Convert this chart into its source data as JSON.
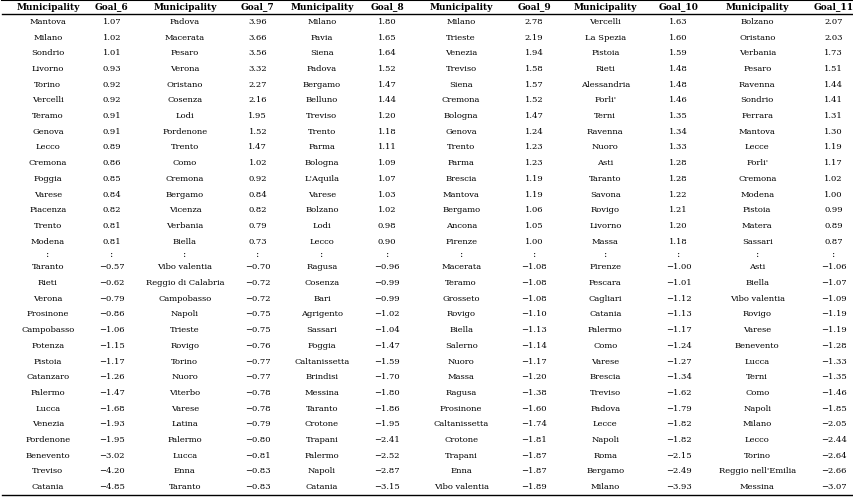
{
  "columns": [
    "Municipality",
    "Goal_6",
    "Municipality",
    "Goal_7",
    "Municipality",
    "Goal_8",
    "Municipality",
    "Goal_9",
    "Municipality",
    "Goal_10",
    "Municipality",
    "Goal_11"
  ],
  "top15": [
    [
      "Mantova",
      "1.07",
      "Padova",
      "3.96",
      "Milano",
      "1.80",
      "Milano",
      "2.78",
      "Vercelli",
      "1.63",
      "Bolzano",
      "2.07"
    ],
    [
      "Milano",
      "1.02",
      "Macerata",
      "3.66",
      "Pavia",
      "1.65",
      "Trieste",
      "2.19",
      "La Spezia",
      "1.60",
      "Oristano",
      "2.03"
    ],
    [
      "Sondrio",
      "1.01",
      "Pesaro",
      "3.56",
      "Siena",
      "1.64",
      "Venezia",
      "1.94",
      "Pistoia",
      "1.59",
      "Verbania",
      "1.73"
    ],
    [
      "Livorno",
      "0.93",
      "Verona",
      "3.32",
      "Padova",
      "1.52",
      "Treviso",
      "1.58",
      "Rieti",
      "1.48",
      "Pesaro",
      "1.51"
    ],
    [
      "Torino",
      "0.92",
      "Oristano",
      "2.27",
      "Bergamo",
      "1.47",
      "Siena",
      "1.57",
      "Alessandria",
      "1.48",
      "Ravenna",
      "1.44"
    ],
    [
      "Vercelli",
      "0.92",
      "Cosenza",
      "2.16",
      "Belluno",
      "1.44",
      "Cremona",
      "1.52",
      "Forli'",
      "1.46",
      "Sondrio",
      "1.41"
    ],
    [
      "Teramo",
      "0.91",
      "Lodi",
      "1.95",
      "Treviso",
      "1.20",
      "Bologna",
      "1.47",
      "Terni",
      "1.35",
      "Ferrara",
      "1.31"
    ],
    [
      "Genova",
      "0.91",
      "Pordenone",
      "1.52",
      "Trento",
      "1.18",
      "Genova",
      "1.24",
      "Ravenna",
      "1.34",
      "Mantova",
      "1.30"
    ],
    [
      "Lecco",
      "0.89",
      "Trento",
      "1.47",
      "Parma",
      "1.11",
      "Trento",
      "1.23",
      "Nuoro",
      "1.33",
      "Lecce",
      "1.19"
    ],
    [
      "Cremona",
      "0.86",
      "Como",
      "1.02",
      "Bologna",
      "1.09",
      "Parma",
      "1.23",
      "Asti",
      "1.28",
      "Forli'",
      "1.17"
    ],
    [
      "Foggia",
      "0.85",
      "Cremona",
      "0.92",
      "L'Aquila",
      "1.07",
      "Brescia",
      "1.19",
      "Taranto",
      "1.28",
      "Cremona",
      "1.02"
    ],
    [
      "Varese",
      "0.84",
      "Bergamo",
      "0.84",
      "Varese",
      "1.03",
      "Mantova",
      "1.19",
      "Savona",
      "1.22",
      "Modena",
      "1.00"
    ],
    [
      "Piacenza",
      "0.82",
      "Vicenza",
      "0.82",
      "Bolzano",
      "1.02",
      "Bergamo",
      "1.06",
      "Rovigo",
      "1.21",
      "Pistoia",
      "0.99"
    ],
    [
      "Trento",
      "0.81",
      "Verbania",
      "0.79",
      "Lodi",
      "0.98",
      "Ancona",
      "1.05",
      "Livorno",
      "1.20",
      "Matera",
      "0.89"
    ],
    [
      "Modena",
      "0.81",
      "Biella",
      "0.73",
      "Lecco",
      "0.90",
      "Firenze",
      "1.00",
      "Massa",
      "1.18",
      "Sassari",
      "0.87"
    ]
  ],
  "bottom15": [
    [
      "Taranto",
      "−0.57",
      "Vibo valentia",
      "−0.70",
      "Ragusa",
      "−0.96",
      "Macerata",
      "−1.08",
      "Firenze",
      "−1.00",
      "Asti",
      "−1.06"
    ],
    [
      "Rieti",
      "−0.62",
      "Reggio di Calabria",
      "−0.72",
      "Cosenza",
      "−0.99",
      "Teramo",
      "−1.08",
      "Pescara",
      "−1.01",
      "Biella",
      "−1.07"
    ],
    [
      "Verona",
      "−0.79",
      "Campobasso",
      "−0.72",
      "Bari",
      "−0.99",
      "Grosseto",
      "−1.08",
      "Cagliari",
      "−1.12",
      "Vibo valentia",
      "−1.09"
    ],
    [
      "Frosinone",
      "−0.86",
      "Napoli",
      "−0.75",
      "Agrigento",
      "−1.02",
      "Rovigo",
      "−1.10",
      "Catania",
      "−1.13",
      "Rovigo",
      "−1.19"
    ],
    [
      "Campobasso",
      "−1.06",
      "Trieste",
      "−0.75",
      "Sassari",
      "−1.04",
      "Biella",
      "−1.13",
      "Palermo",
      "−1.17",
      "Varese",
      "−1.19"
    ],
    [
      "Potenza",
      "−1.15",
      "Rovigo",
      "−0.76",
      "Foggia",
      "−1.47",
      "Salerno",
      "−1.14",
      "Como",
      "−1.24",
      "Benevento",
      "−1.28"
    ],
    [
      "Pistoia",
      "−1.17",
      "Torino",
      "−0.77",
      "Caltanissetta",
      "−1.59",
      "Nuoro",
      "−1.17",
      "Varese",
      "−1.27",
      "Lucca",
      "−1.33"
    ],
    [
      "Catanzaro",
      "−1.26",
      "Nuoro",
      "−0.77",
      "Brindisi",
      "−1.70",
      "Massa",
      "−1.20",
      "Brescia",
      "−1.34",
      "Terni",
      "−1.35"
    ],
    [
      "Palermo",
      "−1.47",
      "Viterbo",
      "−0.78",
      "Messina",
      "−1.80",
      "Ragusa",
      "−1.38",
      "Treviso",
      "−1.62",
      "Como",
      "−1.46"
    ],
    [
      "Lucca",
      "−1.68",
      "Varese",
      "−0.78",
      "Taranto",
      "−1.86",
      "Frosinone",
      "−1.60",
      "Padova",
      "−1.79",
      "Napoli",
      "−1.85"
    ],
    [
      "Venezia",
      "−1.93",
      "Latina",
      "−0.79",
      "Crotone",
      "−1.95",
      "Caltanissetta",
      "−1.74",
      "Lecce",
      "−1.82",
      "Milano",
      "−2.05"
    ],
    [
      "Pordenone",
      "−1.95",
      "Palermo",
      "−0.80",
      "Trapani",
      "−2.41",
      "Crotone",
      "−1.81",
      "Napoli",
      "−1.82",
      "Lecco",
      "−2.44"
    ],
    [
      "Benevento",
      "−3.02",
      "Lucca",
      "−0.81",
      "Palermo",
      "−2.52",
      "Trapani",
      "−1.87",
      "Roma",
      "−2.15",
      "Torino",
      "−2.64"
    ],
    [
      "Treviso",
      "−4.20",
      "Enna",
      "−0.83",
      "Napoli",
      "−2.87",
      "Enna",
      "−1.87",
      "Bergamo",
      "−2.49",
      "Reggio nell'Emilia",
      "−2.66"
    ],
    [
      "Catania",
      "−4.85",
      "Taranto",
      "−0.83",
      "Catania",
      "−3.15",
      "Vibo valentia",
      "−1.89",
      "Milano",
      "−3.93",
      "Messina",
      "−3.07"
    ]
  ],
  "col_widths_raw": [
    1.3,
    0.52,
    1.55,
    0.52,
    1.3,
    0.55,
    1.55,
    0.52,
    1.5,
    0.58,
    1.65,
    0.52
  ],
  "font_size": 6.0,
  "header_font_size": 6.5
}
